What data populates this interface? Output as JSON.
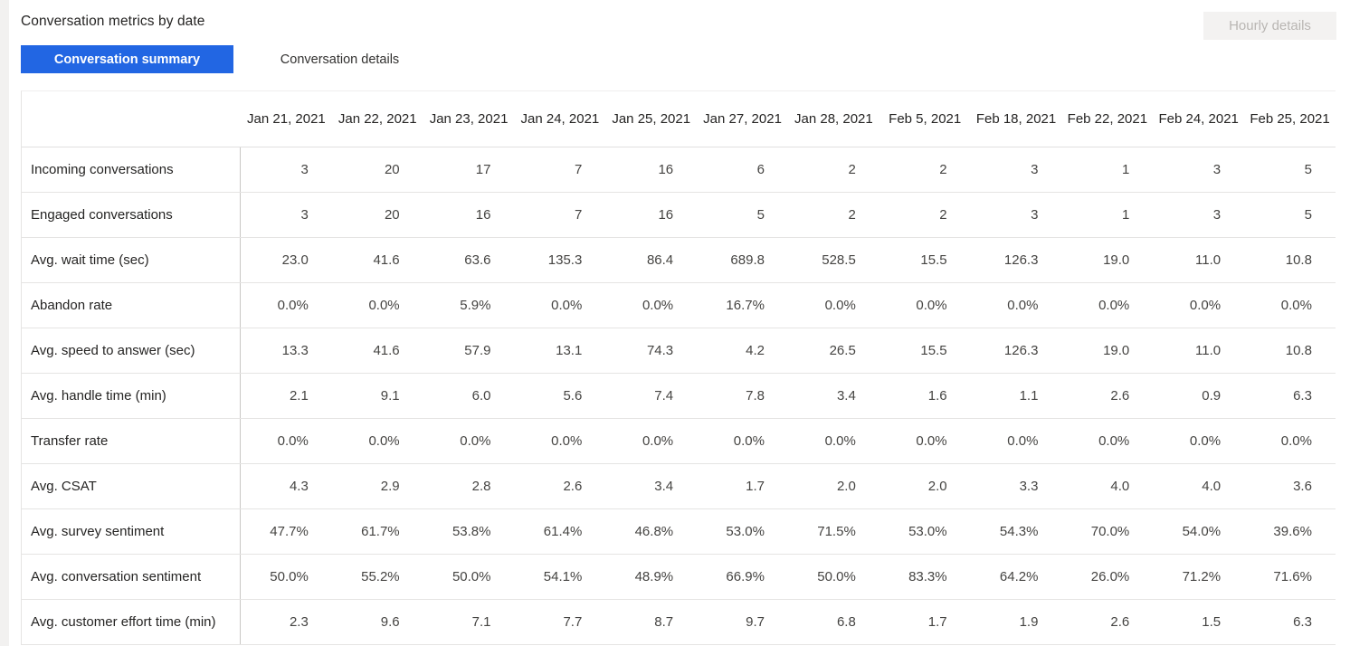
{
  "header": {
    "title": "Conversation metrics by date",
    "hourly_details_label": "Hourly details"
  },
  "tabs": [
    {
      "label": "Conversation summary",
      "active": true
    },
    {
      "label": "Conversation details",
      "active": false
    }
  ],
  "colors": {
    "accent": "#2266e3",
    "disabled_button_bg": "#f3f2f1",
    "disabled_button_text": "#b9b6b3",
    "gridline": "#e5e4e3",
    "label_column_divider": "#c9c7c5"
  },
  "chart_data": {
    "type": "table",
    "title": "Conversation metrics by date",
    "columns": [
      "Jan 21, 2021",
      "Jan 22, 2021",
      "Jan 23, 2021",
      "Jan 24, 2021",
      "Jan 25, 2021",
      "Jan 27, 2021",
      "Jan 28, 2021",
      "Feb 5, 2021",
      "Feb 18, 2021",
      "Feb 22, 2021",
      "Feb 24, 2021",
      "Feb 25, 2021"
    ],
    "rows": [
      {
        "label": "Incoming conversations",
        "values": [
          "3",
          "20",
          "17",
          "7",
          "16",
          "6",
          "2",
          "2",
          "3",
          "1",
          "3",
          "5"
        ]
      },
      {
        "label": "Engaged conversations",
        "values": [
          "3",
          "20",
          "16",
          "7",
          "16",
          "5",
          "2",
          "2",
          "3",
          "1",
          "3",
          "5"
        ]
      },
      {
        "label": "Avg. wait time (sec)",
        "values": [
          "23.0",
          "41.6",
          "63.6",
          "135.3",
          "86.4",
          "689.8",
          "528.5",
          "15.5",
          "126.3",
          "19.0",
          "11.0",
          "10.8"
        ]
      },
      {
        "label": "Abandon rate",
        "values": [
          "0.0%",
          "0.0%",
          "5.9%",
          "0.0%",
          "0.0%",
          "16.7%",
          "0.0%",
          "0.0%",
          "0.0%",
          "0.0%",
          "0.0%",
          "0.0%"
        ]
      },
      {
        "label": "Avg. speed to answer (sec)",
        "values": [
          "13.3",
          "41.6",
          "57.9",
          "13.1",
          "74.3",
          "4.2",
          "26.5",
          "15.5",
          "126.3",
          "19.0",
          "11.0",
          "10.8"
        ]
      },
      {
        "label": "Avg. handle time (min)",
        "values": [
          "2.1",
          "9.1",
          "6.0",
          "5.6",
          "7.4",
          "7.8",
          "3.4",
          "1.6",
          "1.1",
          "2.6",
          "0.9",
          "6.3"
        ]
      },
      {
        "label": "Transfer rate",
        "values": [
          "0.0%",
          "0.0%",
          "0.0%",
          "0.0%",
          "0.0%",
          "0.0%",
          "0.0%",
          "0.0%",
          "0.0%",
          "0.0%",
          "0.0%",
          "0.0%"
        ]
      },
      {
        "label": "Avg. CSAT",
        "values": [
          "4.3",
          "2.9",
          "2.8",
          "2.6",
          "3.4",
          "1.7",
          "2.0",
          "2.0",
          "3.3",
          "4.0",
          "4.0",
          "3.6"
        ]
      },
      {
        "label": "Avg. survey sentiment",
        "values": [
          "47.7%",
          "61.7%",
          "53.8%",
          "61.4%",
          "46.8%",
          "53.0%",
          "71.5%",
          "53.0%",
          "54.3%",
          "70.0%",
          "54.0%",
          "39.6%"
        ]
      },
      {
        "label": "Avg. conversation sentiment",
        "values": [
          "50.0%",
          "55.2%",
          "50.0%",
          "54.1%",
          "48.9%",
          "66.9%",
          "50.0%",
          "83.3%",
          "64.2%",
          "26.0%",
          "71.2%",
          "71.6%"
        ]
      },
      {
        "label": "Avg. customer effort time (min)",
        "values": [
          "2.3",
          "9.6",
          "7.1",
          "7.7",
          "8.7",
          "9.7",
          "6.8",
          "1.7",
          "1.9",
          "2.6",
          "1.5",
          "6.3"
        ]
      }
    ]
  }
}
